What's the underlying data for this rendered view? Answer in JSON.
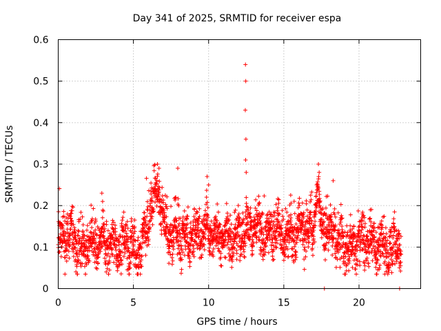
{
  "chart_data": {
    "type": "scatter",
    "title": "Day 341 of 2025, SRMTID for receiver espa",
    "xlabel": "GPS time / hours",
    "ylabel": "SRMTID / TECUs",
    "xlim": [
      0,
      24.1
    ],
    "ylim": [
      0,
      0.6
    ],
    "xticks": [
      0,
      5,
      10,
      15,
      20
    ],
    "xtick_labels": [
      "0",
      "5",
      "10",
      "15",
      "20"
    ],
    "yticks": [
      0,
      0.1,
      0.2,
      0.3,
      0.4,
      0.5,
      0.6
    ],
    "ytick_labels": [
      "0",
      "0.1",
      "0.2",
      "0.3",
      "0.4",
      "0.5",
      "0.6"
    ],
    "grid": true,
    "marker": "+",
    "color": "#ff0000",
    "series": [
      {
        "name": "SRMTID",
        "baseline_profile": {
          "x": [
            0,
            0.5,
            1,
            1.5,
            2,
            2.5,
            3,
            3.5,
            4,
            4.5,
            5,
            5.5,
            5.8,
            6.2,
            6.6,
            7,
            7.5,
            8,
            8.5,
            9,
            9.5,
            10,
            10.5,
            11,
            11.5,
            12,
            12.5,
            13,
            13.5,
            14,
            14.5,
            15,
            15.5,
            16,
            16.5,
            17,
            17.2,
            17.5,
            18,
            18.5,
            19,
            19.5,
            20,
            20.5,
            21,
            21.5,
            22,
            22.5,
            22.8
          ],
          "y": [
            0.11,
            0.12,
            0.13,
            0.09,
            0.1,
            0.11,
            0.12,
            0.11,
            0.1,
            0.11,
            0.1,
            0.09,
            0.13,
            0.2,
            0.26,
            0.16,
            0.13,
            0.14,
            0.12,
            0.12,
            0.14,
            0.14,
            0.13,
            0.12,
            0.12,
            0.13,
            0.14,
            0.15,
            0.14,
            0.13,
            0.14,
            0.13,
            0.13,
            0.14,
            0.15,
            0.14,
            0.25,
            0.15,
            0.14,
            0.13,
            0.1,
            0.1,
            0.12,
            0.11,
            0.11,
            0.1,
            0.09,
            0.1,
            0.11
          ],
          "spread": 0.045,
          "samples": 2600
        },
        "spikes": [
          {
            "x": 12.45,
            "y": 0.54
          },
          {
            "x": 12.47,
            "y": 0.5
          },
          {
            "x": 12.44,
            "y": 0.43
          },
          {
            "x": 12.48,
            "y": 0.36
          },
          {
            "x": 12.46,
            "y": 0.31
          },
          {
            "x": 12.5,
            "y": 0.28
          },
          {
            "x": 2.9,
            "y": 0.23
          },
          {
            "x": 2.95,
            "y": 0.21
          },
          {
            "x": 7.95,
            "y": 0.29
          },
          {
            "x": 9.9,
            "y": 0.27
          },
          {
            "x": 10.0,
            "y": 0.25
          },
          {
            "x": 6.6,
            "y": 0.3
          },
          {
            "x": 6.7,
            "y": 0.29
          },
          {
            "x": 17.3,
            "y": 0.3
          },
          {
            "x": 17.35,
            "y": 0.28
          },
          {
            "x": 17.7,
            "y": 0.0
          },
          {
            "x": 22.7,
            "y": 0.0
          }
        ]
      }
    ]
  }
}
